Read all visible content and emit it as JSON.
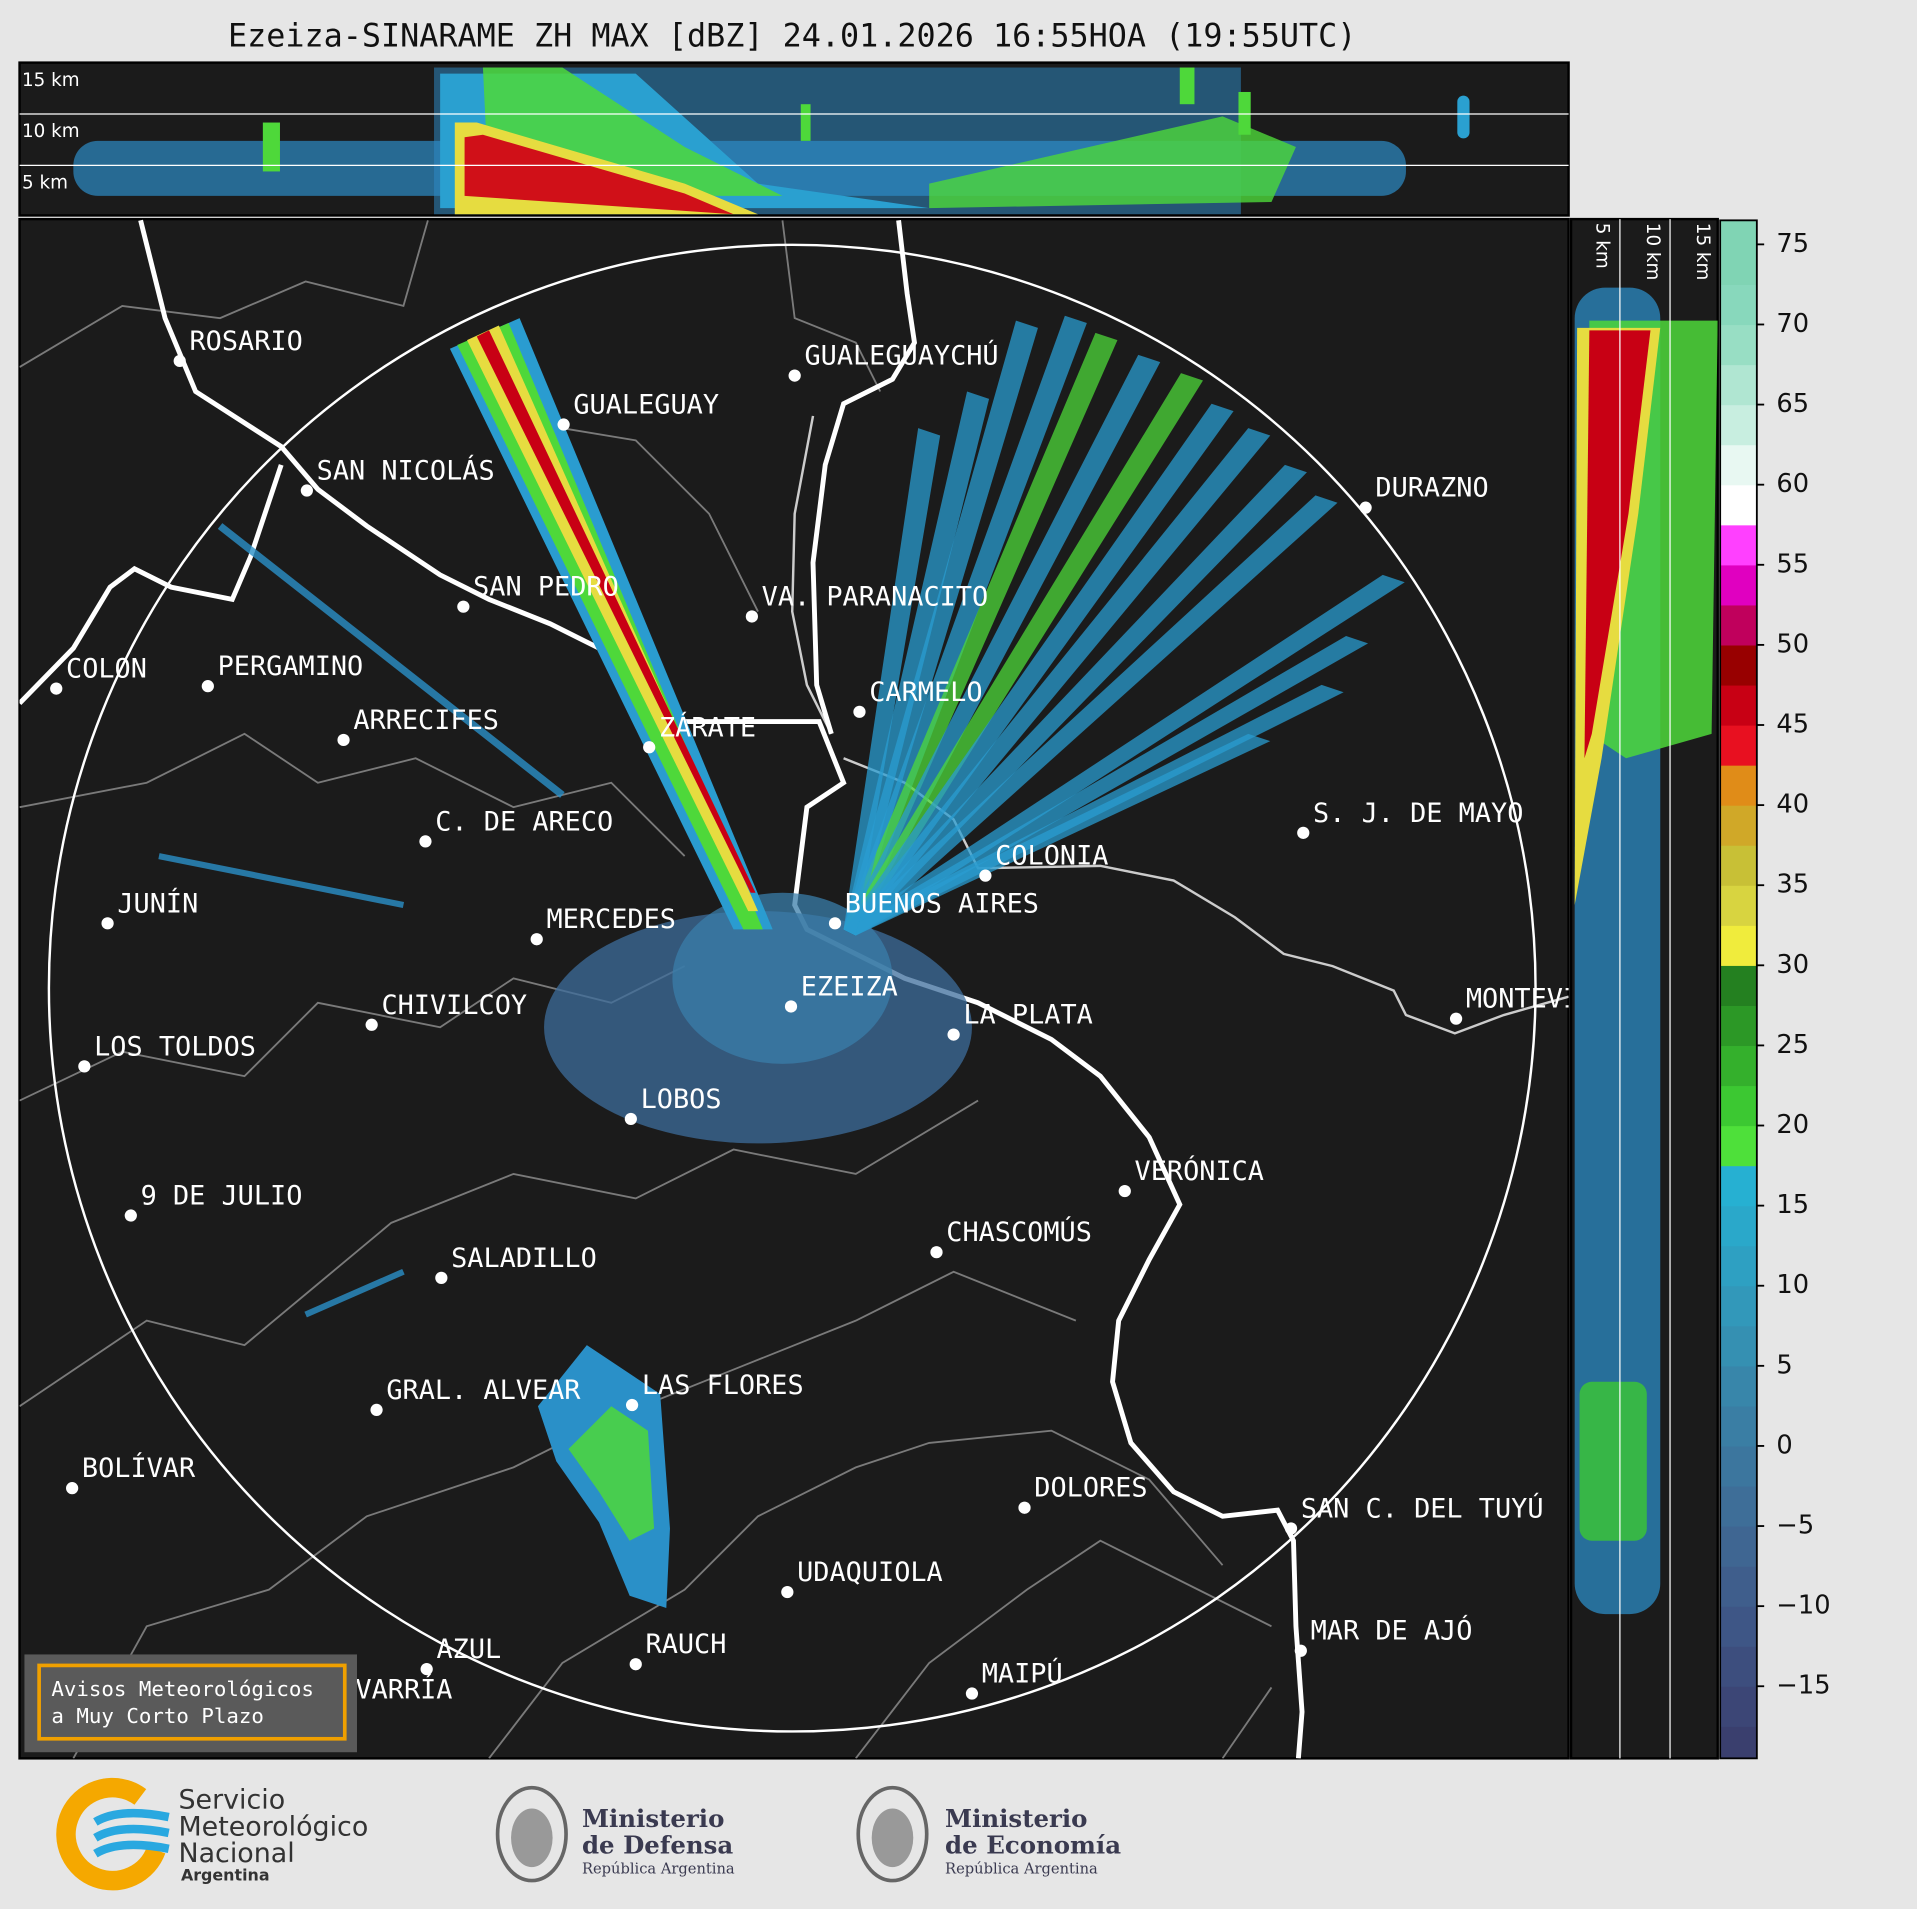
{
  "title": "Ezeiza-SINARAME ZH MAX [dBZ] 24.01.2026 16:55HOA (19:55UTC)",
  "cross_section_top": {
    "height_labels": [
      "15 km",
      "10 km",
      "5 km"
    ]
  },
  "cross_section_right": {
    "height_labels": [
      "5 km",
      "10 km",
      "15 km"
    ]
  },
  "cities": [
    "ROSARIO",
    "GUALEGUAYCHÚ",
    "GUALEGUAY",
    "SAN NICOLÁS",
    "DURAZNO",
    "SAN PEDRO",
    "VA. PARANACITO",
    "COLON",
    "PERGAMINO",
    "CARMELO",
    "ARRECIFES",
    "ZÁRATE",
    "S. J. DE MAYO",
    "C. DE ARECO",
    "COLONIA",
    "BUENOS AIRES",
    "JUNÍN",
    "MERCEDES",
    "EZEIZA",
    "MONTEVIDEO",
    "CHIVILCOY",
    "LA PLATA",
    "LOS TOLDOS",
    "LOBOS",
    "VERÓNICA",
    "9 DE JULIO",
    "CHASCOMÚS",
    "SALADILLO",
    "GRAL. ALVEAR",
    "LAS FLORES",
    "BOLÍVAR",
    "DOLORES",
    "SAN C. DEL TUYÚ",
    "UDAQUIOLA",
    "RAUCH",
    "MAR DE AJÓ",
    "AZUL",
    "OLAVARRÍA",
    "MAIPÚ"
  ],
  "colorbar": {
    "range": [
      -19.5,
      76.5
    ],
    "ticks": [
      75,
      70,
      65,
      60,
      55,
      50,
      45,
      40,
      35,
      30,
      25,
      20,
      15,
      10,
      5,
      0,
      {
        "value": -5,
        "label": "−5"
      },
      {
        "value": -10,
        "label": "−10"
      },
      {
        "value": -15,
        "label": "−15"
      }
    ],
    "levels": [
      -19.5,
      -17.5,
      -15,
      -12.5,
      -10,
      -7.5,
      -5,
      -2.5,
      0,
      2.5,
      5,
      7.5,
      10,
      12.5,
      15,
      17.5,
      20,
      22.5,
      25,
      27.5,
      30,
      32.5,
      35,
      37.5,
      40,
      42.5,
      45,
      47.5,
      50,
      52.5,
      55,
      57.5,
      60,
      62.5,
      65,
      67.5,
      70,
      72.5
    ],
    "colors": [
      "#3a3f6e",
      "#3c4676",
      "#3d4e7e",
      "#3e5686",
      "#3f5e8c",
      "#3f6692",
      "#3e6e98",
      "#3c769e",
      "#3a7ea4",
      "#3886aa",
      "#3590b2",
      "#3298ba",
      "#2ea0c2",
      "#2aa8ca",
      "#26b0d2",
      "#4ee03a",
      "#3cc832",
      "#34b02c",
      "#2c9826",
      "#248020",
      "#f0ec3c",
      "#d8d440",
      "#c8c036",
      "#d0a828",
      "#e08c18",
      "#e81020",
      "#c80014",
      "#980000",
      "#c0005c",
      "#e000c0",
      "#ff40ff",
      "#ffffff",
      "#e8f8f2",
      "#c8eee0",
      "#b0e6d2",
      "#98dec4",
      "#88d8bc",
      "#80d4b4"
    ]
  },
  "notice": [
    "Avisos Meteorológicos",
    "a Muy Corto Plazo"
  ],
  "logos": [
    {
      "lines": [
        "Servicio",
        "Meteorológico",
        "Nacional"
      ],
      "subtitle": "Argentina"
    },
    {
      "lines": [
        "Ministerio",
        "de Defensa"
      ],
      "subtitle": "República Argentina"
    },
    {
      "lines": [
        "Ministerio",
        "de Economía"
      ],
      "subtitle": "República Argentina"
    }
  ]
}
